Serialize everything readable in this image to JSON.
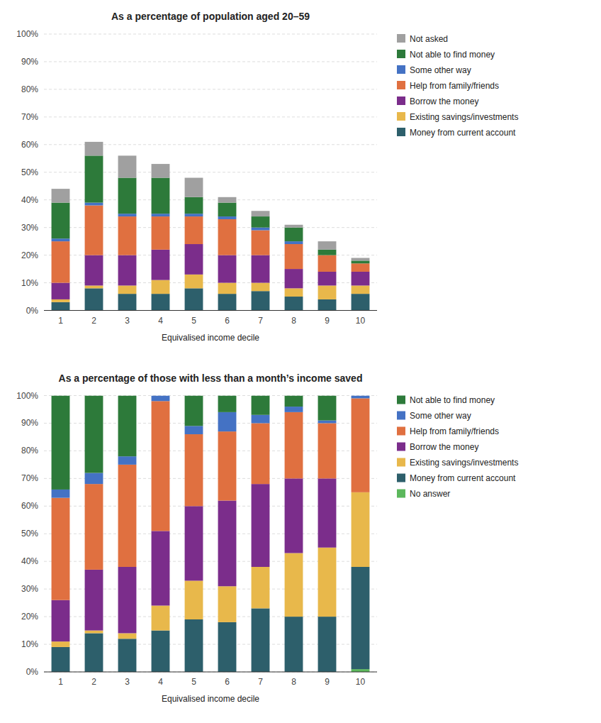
{
  "chart_data": [
    {
      "type": "bar",
      "stacked": true,
      "title": "As a percentage of population aged 20–59",
      "x_label": "Equivalised income decile",
      "categories": [
        "1",
        "2",
        "3",
        "4",
        "5",
        "6",
        "7",
        "8",
        "9",
        "10"
      ],
      "series": [
        {
          "name": "Money from current account",
          "color": "#2d5f6b",
          "values": [
            3,
            8,
            6,
            6,
            8,
            6,
            7,
            5,
            4,
            6
          ]
        },
        {
          "name": "Existing savings/investments",
          "color": "#e8b84b",
          "values": [
            1,
            1,
            3,
            5,
            5,
            4,
            3,
            3,
            5,
            3
          ]
        },
        {
          "name": "Borrow the money",
          "color": "#7b2d8b",
          "values": [
            6,
            11,
            11,
            11,
            11,
            10,
            10,
            7,
            5,
            5
          ]
        },
        {
          "name": "Help from family/friends",
          "color": "#e07040",
          "values": [
            15,
            18,
            14,
            12,
            10,
            13,
            9,
            9,
            6,
            3
          ]
        },
        {
          "name": "Some other way",
          "color": "#4472c4",
          "values": [
            1,
            1,
            1,
            1,
            1,
            1,
            1,
            1,
            0,
            0
          ]
        },
        {
          "name": "Not able to find money",
          "color": "#2d7a3a",
          "values": [
            13,
            17,
            13,
            13,
            6,
            5,
            4,
            5,
            2,
            1
          ]
        },
        {
          "name": "Not asked",
          "color": "#a0a0a0",
          "values": [
            5,
            5,
            8,
            5,
            7,
            2,
            2,
            1,
            3,
            1
          ]
        }
      ],
      "ylim": [
        0,
        100
      ],
      "yticks": [
        {
          "value": 0,
          "label": "0%"
        },
        {
          "value": 10,
          "label": "10%"
        },
        {
          "value": 20,
          "label": "20%"
        },
        {
          "value": 30,
          "label": "30%"
        },
        {
          "value": 40,
          "label": "40%"
        },
        {
          "value": 50,
          "label": "50%"
        },
        {
          "value": 60,
          "label": "60%"
        },
        {
          "value": 70,
          "label": "70%"
        },
        {
          "value": 80,
          "label": "80%"
        },
        {
          "value": 90,
          "label": "90%"
        },
        {
          "value": 100,
          "label": "100%"
        }
      ],
      "grid": true,
      "legend": "right"
    },
    {
      "type": "bar",
      "stacked": true,
      "title": "As a percentage of those with less than a month’s income saved",
      "x_label": "Equivalised income decile",
      "categories": [
        "1",
        "2",
        "3",
        "4",
        "5",
        "6",
        "7",
        "8",
        "9",
        "10"
      ],
      "series": [
        {
          "name": "No answer",
          "color": "#5cb85c",
          "values": [
            0,
            0,
            0,
            0,
            0,
            0,
            0,
            0,
            0,
            1
          ]
        },
        {
          "name": "Money from current account",
          "color": "#2d5f6b",
          "values": [
            9,
            14,
            12,
            15,
            19,
            18,
            23,
            20,
            20,
            37
          ]
        },
        {
          "name": "Existing savings/investments",
          "color": "#e8b84b",
          "values": [
            2,
            1,
            2,
            9,
            14,
            13,
            15,
            23,
            25,
            27
          ]
        },
        {
          "name": "Borrow the money",
          "color": "#7b2d8b",
          "values": [
            15,
            22,
            24,
            27,
            27,
            31,
            30,
            27,
            25,
            0
          ]
        },
        {
          "name": "Help from family/friends",
          "color": "#e07040",
          "values": [
            37,
            31,
            37,
            47,
            26,
            25,
            22,
            24,
            20,
            34
          ]
        },
        {
          "name": "Some other way",
          "color": "#4472c4",
          "values": [
            3,
            4,
            3,
            2,
            3,
            7,
            3,
            2,
            1,
            1
          ]
        },
        {
          "name": "Not able to find money",
          "color": "#2d7a3a",
          "values": [
            34,
            28,
            22,
            0,
            11,
            6,
            7,
            4,
            9,
            0
          ]
        }
      ],
      "ylim": [
        0,
        100
      ],
      "yticks": [
        {
          "value": 0,
          "label": "0%"
        },
        {
          "value": 10,
          "label": "10%"
        },
        {
          "value": 20,
          "label": "20%"
        },
        {
          "value": 30,
          "label": "30%"
        },
        {
          "value": 40,
          "label": "40%"
        },
        {
          "value": 50,
          "label": "50%"
        },
        {
          "value": 60,
          "label": "60%"
        },
        {
          "value": 70,
          "label": "70%"
        },
        {
          "value": 80,
          "label": "80%"
        },
        {
          "value": 90,
          "label": "90%"
        },
        {
          "value": 100,
          "label": "100%"
        }
      ],
      "grid": true,
      "legend": "right"
    }
  ]
}
